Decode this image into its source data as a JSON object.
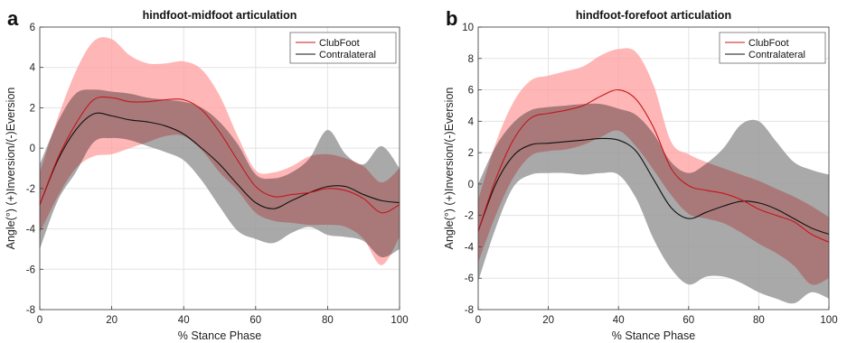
{
  "chart_data": [
    {
      "panel_letter": "a",
      "type": "line",
      "title": "hindfoot-midfoot articulation",
      "xlabel": "% Stance Phase",
      "ylabel": "Angle(°) (+)Inversion/(-)Eversion",
      "xlim": [
        0,
        100
      ],
      "ylim": [
        -8,
        6
      ],
      "xticks": [
        0,
        20,
        40,
        60,
        80,
        100
      ],
      "yticks": [
        -8,
        -6,
        -4,
        -2,
        0,
        2,
        4,
        6
      ],
      "grid": true,
      "legend_position": "top-right",
      "legend": [
        "ClubFoot",
        "Contralateral"
      ],
      "x": [
        0,
        5,
        10,
        15,
        20,
        25,
        30,
        35,
        40,
        45,
        50,
        55,
        60,
        65,
        70,
        75,
        80,
        85,
        90,
        95,
        100
      ],
      "series": [
        {
          "name": "ClubFoot",
          "color": "#c4161c",
          "band_color": "#ff9e9e",
          "mean": [
            -2.8,
            -0.5,
            1.2,
            2.4,
            2.5,
            2.3,
            2.3,
            2.4,
            2.4,
            1.9,
            0.8,
            -0.6,
            -1.9,
            -2.4,
            -2.3,
            -2.2,
            -2.0,
            -2.1,
            -2.5,
            -3.2,
            -2.8
          ],
          "upper": [
            -1.2,
            1.5,
            3.8,
            5.3,
            5.4,
            4.6,
            4.2,
            4.2,
            4.3,
            3.9,
            2.6,
            0.6,
            -1.1,
            -1.2,
            -0.9,
            -0.4,
            -0.3,
            -0.5,
            -0.9,
            -1.7,
            -1.0
          ],
          "lower": [
            -4.2,
            -2.4,
            -1.0,
            -0.4,
            -0.3,
            0.0,
            0.3,
            0.6,
            0.6,
            -0.1,
            -1.2,
            -2.1,
            -3.2,
            -3.6,
            -3.7,
            -3.8,
            -3.8,
            -3.9,
            -4.5,
            -5.8,
            -4.4
          ]
        },
        {
          "name": "Contralateral",
          "color": "#111111",
          "band_color": "#9a9a9a",
          "mean": [
            -2.8,
            -0.6,
            0.9,
            1.7,
            1.6,
            1.4,
            1.3,
            1.1,
            0.7,
            0.0,
            -0.8,
            -1.8,
            -2.7,
            -3.0,
            -2.6,
            -2.2,
            -1.9,
            -1.9,
            -2.3,
            -2.6,
            -2.7
          ],
          "upper": [
            -0.8,
            1.3,
            2.7,
            2.9,
            2.8,
            2.7,
            2.5,
            2.4,
            2.3,
            2.0,
            1.3,
            0.2,
            -1.3,
            -1.5,
            -1.2,
            -0.5,
            0.9,
            -0.3,
            -0.8,
            0.1,
            -1.0
          ],
          "lower": [
            -5.0,
            -2.6,
            -1.2,
            0.3,
            0.5,
            0.4,
            0.1,
            -0.2,
            -0.6,
            -1.6,
            -2.9,
            -4.1,
            -4.5,
            -4.7,
            -4.2,
            -3.9,
            -4.3,
            -4.4,
            -4.6,
            -5.4,
            -5.0
          ]
        }
      ]
    },
    {
      "panel_letter": "b",
      "type": "line",
      "title": "hindfoot-forefoot articulation",
      "xlabel": "% Stance Phase",
      "ylabel": "Angle(°) (+)Inversion/(-)Eversion",
      "xlim": [
        0,
        100
      ],
      "ylim": [
        -8,
        10
      ],
      "xticks": [
        0,
        20,
        40,
        60,
        80,
        100
      ],
      "yticks": [
        -8,
        -6,
        -4,
        -2,
        0,
        2,
        4,
        6,
        8,
        10
      ],
      "grid": true,
      "legend_position": "top-right",
      "legend": [
        "ClubFoot",
        "Contralateral"
      ],
      "x": [
        0,
        5,
        10,
        15,
        20,
        25,
        30,
        35,
        40,
        45,
        50,
        55,
        60,
        65,
        70,
        75,
        80,
        85,
        90,
        95,
        100
      ],
      "series": [
        {
          "name": "ClubFoot",
          "color": "#c4161c",
          "band_color": "#ff9e9e",
          "mean": [
            -3.0,
            0.3,
            2.8,
            4.2,
            4.5,
            4.7,
            5.0,
            5.6,
            6.0,
            5.4,
            3.6,
            1.0,
            -0.1,
            -0.4,
            -0.6,
            -1.0,
            -1.6,
            -2.0,
            -2.4,
            -3.2,
            -3.7
          ],
          "upper": [
            -1.0,
            2.6,
            5.2,
            6.6,
            6.9,
            7.2,
            7.5,
            8.2,
            8.6,
            8.4,
            6.3,
            2.7,
            1.9,
            1.4,
            1.0,
            0.6,
            0.2,
            -0.3,
            -0.8,
            -1.4,
            -2.1
          ],
          "lower": [
            -5.0,
            -2.0,
            0.4,
            1.8,
            2.1,
            2.2,
            2.5,
            3.0,
            3.4,
            2.4,
            0.9,
            -0.7,
            -1.9,
            -2.2,
            -2.5,
            -3.1,
            -3.8,
            -4.4,
            -5.2,
            -6.4,
            -6.0
          ]
        },
        {
          "name": "Contralateral",
          "color": "#111111",
          "band_color": "#9a9a9a",
          "mean": [
            -3.0,
            0.0,
            1.8,
            2.5,
            2.6,
            2.7,
            2.8,
            2.9,
            2.8,
            2.1,
            0.3,
            -1.5,
            -2.2,
            -1.8,
            -1.4,
            -1.1,
            -1.2,
            -1.6,
            -2.2,
            -2.8,
            -3.2
          ],
          "upper": [
            0.0,
            2.4,
            3.9,
            4.7,
            4.9,
            5.0,
            5.1,
            5.1,
            4.8,
            4.4,
            3.2,
            1.4,
            0.7,
            1.3,
            2.3,
            3.8,
            4.0,
            2.7,
            1.4,
            0.9,
            0.6
          ],
          "lower": [
            -6.2,
            -2.8,
            -0.2,
            0.6,
            0.7,
            0.7,
            0.6,
            0.7,
            0.6,
            -0.9,
            -3.5,
            -5.4,
            -6.4,
            -5.9,
            -5.9,
            -6.3,
            -6.9,
            -7.3,
            -7.6,
            -6.9,
            -7.3
          ]
        }
      ]
    }
  ]
}
